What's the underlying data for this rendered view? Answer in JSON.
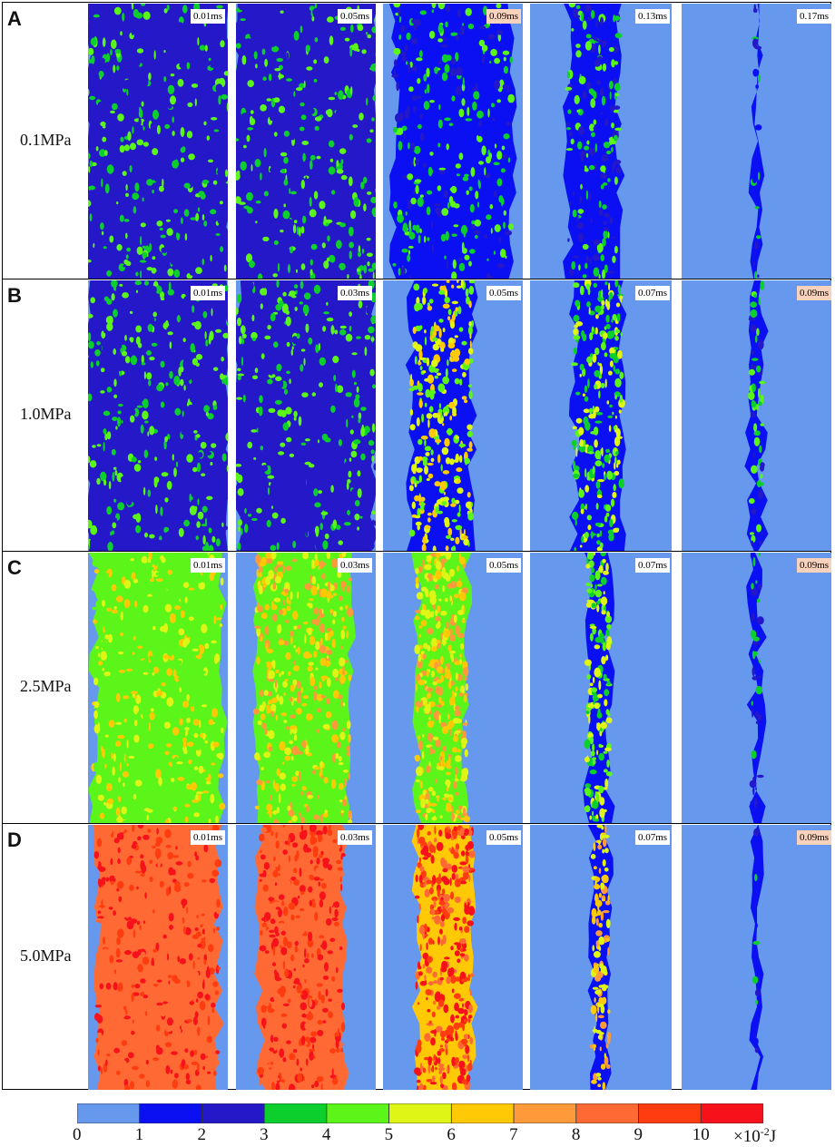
{
  "rows": [
    {
      "letter": "A",
      "pressure": "0.1MPa",
      "times": [
        "0.01ms",
        "0.05ms",
        "0.09ms",
        "0.13ms",
        "0.17ms"
      ],
      "highlighted_time_index": 2
    },
    {
      "letter": "B",
      "pressure": "1.0MPa",
      "times": [
        "0.01ms",
        "0.03ms",
        "0.05ms",
        "0.07ms",
        "0.09ms"
      ],
      "highlighted_time_index": 4
    },
    {
      "letter": "C",
      "pressure": "2.5MPa",
      "times": [
        "0.01ms",
        "0.03ms",
        "0.05ms",
        "0.07ms",
        "0.09ms"
      ],
      "highlighted_time_index": 4
    },
    {
      "letter": "D",
      "pressure": "5.0MPa",
      "times": [
        "0.01ms",
        "0.03ms",
        "0.05ms",
        "0.07ms",
        "0.09ms"
      ],
      "highlighted_time_index": 4
    }
  ],
  "colorbar": {
    "ticks": [
      "0",
      "1",
      "2",
      "3",
      "4",
      "5",
      "6",
      "7",
      "8",
      "9",
      "10"
    ],
    "unit_prefix": "×10",
    "unit_exponent": "-2",
    "unit_suffix": "J",
    "colors": [
      "#6699ee",
      "#0a10f2",
      "#2418c8",
      "#0ccf2e",
      "#5cf51a",
      "#dff515",
      "#ffc905",
      "#ff9a3a",
      "#ff6a34",
      "#ff3c0f",
      "#f6111b"
    ]
  },
  "colors": {
    "background_field": "#6699ee",
    "label_highlight": "#f8d2bd",
    "label_normal": "#ffffff"
  }
}
